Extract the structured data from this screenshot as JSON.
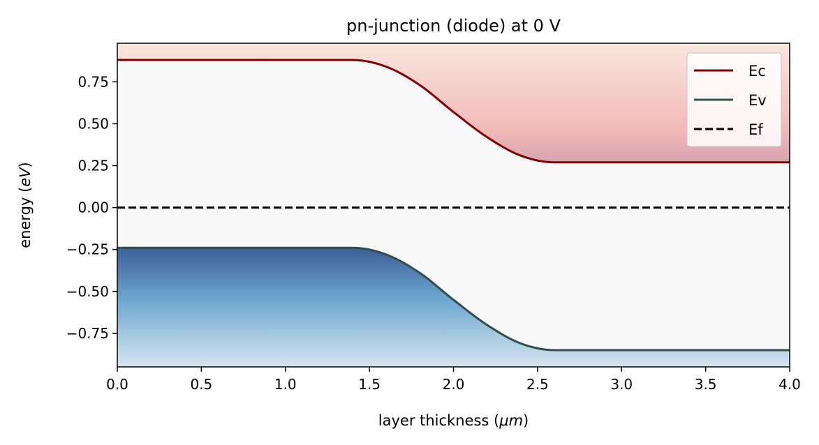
{
  "chart_data": {
    "type": "line",
    "title": "pn-junction (diode) at 0 V",
    "xlabel": "layer thickness",
    "xlabel_unit": "μm",
    "ylabel": "energy",
    "ylabel_unit": "eV",
    "xlim": [
      0,
      4.0
    ],
    "ylim": [
      -0.95,
      0.98
    ],
    "x_ticks": [
      0.0,
      0.5,
      1.0,
      1.5,
      2.0,
      2.5,
      3.0,
      3.5,
      4.0
    ],
    "x_tick_labels": [
      "0.0",
      "0.5",
      "1.0",
      "1.5",
      "2.0",
      "2.5",
      "3.0",
      "3.5",
      "4.0"
    ],
    "y_ticks": [
      0.75,
      0.5,
      0.25,
      0.0,
      -0.25,
      -0.5,
      -0.75
    ],
    "y_tick_labels": [
      "0.75",
      "0.50",
      "0.25",
      "0.00",
      "−0.25",
      "−0.50",
      "−0.75"
    ],
    "grid": false,
    "legend_position": "top-right",
    "series": [
      {
        "name": "Ec",
        "style": "solid",
        "color": "#800000",
        "x": [
          0.0,
          0.5,
          1.0,
          1.4,
          1.6,
          1.8,
          2.0,
          2.2,
          2.4,
          2.6,
          3.0,
          3.5,
          4.0
        ],
        "y": [
          0.88,
          0.88,
          0.88,
          0.88,
          0.84,
          0.73,
          0.57,
          0.42,
          0.31,
          0.27,
          0.27,
          0.27,
          0.27
        ]
      },
      {
        "name": "Ev",
        "style": "solid",
        "color": "#2f4f4f",
        "x": [
          0.0,
          0.5,
          1.0,
          1.4,
          1.6,
          1.8,
          2.0,
          2.2,
          2.4,
          2.6,
          3.0,
          3.5,
          4.0
        ],
        "y": [
          -0.24,
          -0.24,
          -0.24,
          -0.24,
          -0.28,
          -0.39,
          -0.55,
          -0.7,
          -0.81,
          -0.85,
          -0.85,
          -0.85,
          -0.85
        ]
      },
      {
        "name": "Ef",
        "style": "dashed",
        "color": "#000000",
        "x": [
          0.0,
          4.0
        ],
        "y": [
          0.0,
          0.0
        ]
      }
    ]
  },
  "colors": {
    "background": "#f8f8f8",
    "conduction_fill_top": "#f9e6df",
    "conduction_fill_bottom": "#d8a4b0",
    "valence_fill_top": "#3b5e98",
    "valence_fill_mid": "#6fa9d0",
    "valence_fill_bottom": "#d7e5f0"
  }
}
